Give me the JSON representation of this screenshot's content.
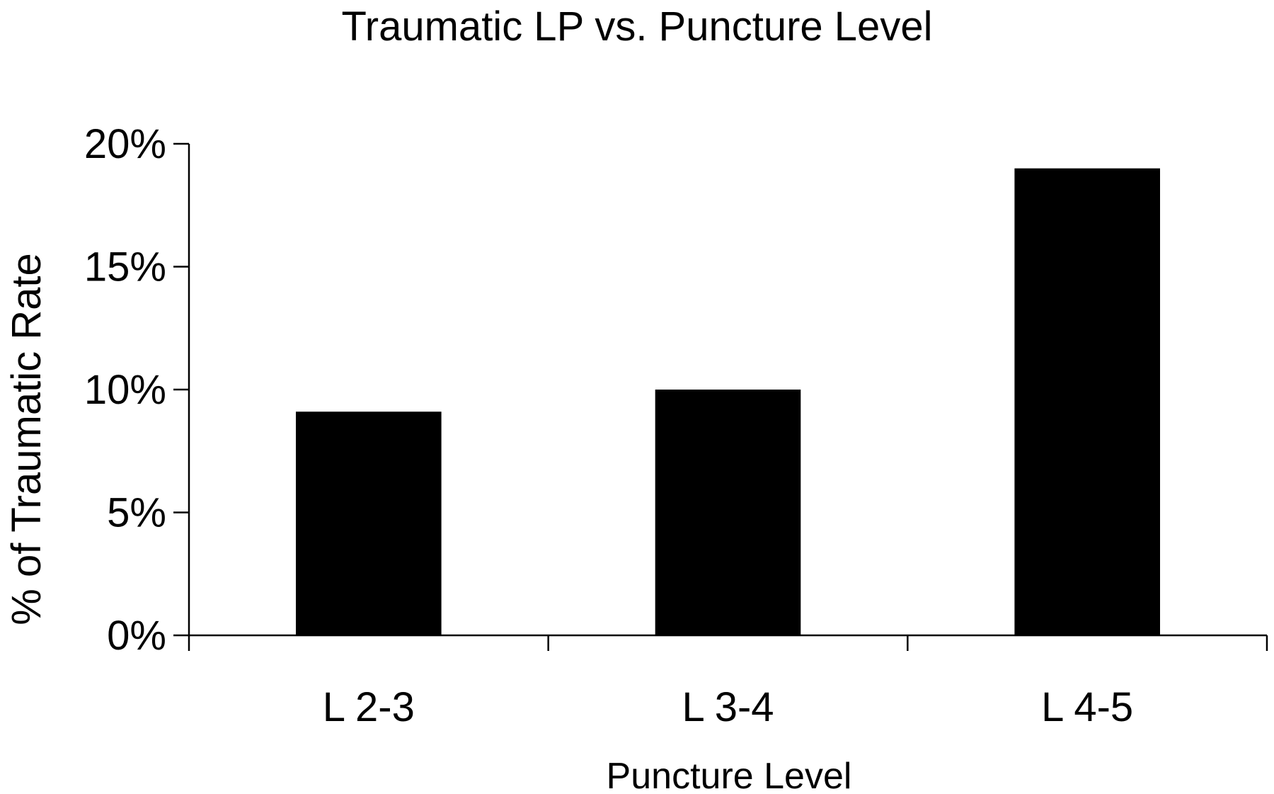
{
  "chart_data": {
    "type": "bar",
    "title": "Traumatic LP vs. Puncture Level",
    "xlabel": "Puncture Level",
    "ylabel": "% of Traumatic Rate",
    "categories": [
      "L 2-3",
      "L 3-4",
      "L 4-5"
    ],
    "values": [
      9.1,
      10,
      19
    ],
    "ylim": [
      0,
      20
    ],
    "yticks": [
      0,
      5,
      10,
      15,
      20
    ],
    "ytick_labels": [
      "0%",
      "5%",
      "10%",
      "15%",
      "20%"
    ],
    "bar_color": "#000000",
    "grid": false,
    "legend": "none"
  }
}
